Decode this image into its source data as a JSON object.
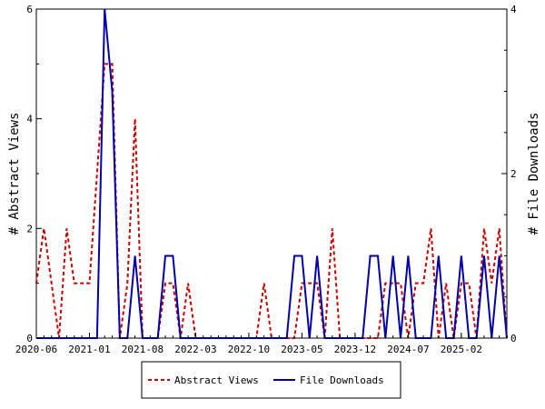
{
  "chart_data": {
    "type": "line",
    "xlabel": "",
    "ylabel": "# Abstract Views",
    "y2label": "# File Downloads",
    "x_tick_labels": [
      "2020-06",
      "2021-01",
      "2021-08",
      "2022-03",
      "2022-10",
      "2023-05",
      "2023-12",
      "2024-07",
      "2025-02"
    ],
    "ylim": [
      0,
      6
    ],
    "y_ticks": [
      "0",
      "2",
      "4",
      "6"
    ],
    "y2lim": [
      0,
      4
    ],
    "y2_ticks": [
      "0",
      "2",
      "4"
    ],
    "legend_position": "bottom-center",
    "grid": false,
    "colors": {
      "abstract_views": "#cc0000",
      "file_downloads": "#0000aa"
    },
    "series": [
      {
        "name": "Abstract Views",
        "axis": "left",
        "style": "dashed",
        "values": [
          1,
          2,
          1,
          0,
          2,
          1,
          1,
          1,
          3,
          5,
          5,
          0,
          1,
          4,
          0,
          0,
          0,
          1,
          1,
          0,
          1,
          0,
          0,
          0,
          0,
          0,
          0,
          0,
          0,
          0,
          1,
          0,
          0,
          0,
          0,
          1,
          1,
          1,
          0,
          2,
          0,
          0,
          0,
          0,
          0,
          0,
          1,
          1,
          1,
          0,
          1,
          1,
          2,
          0,
          1,
          0,
          1,
          1,
          0,
          2,
          1,
          2,
          0
        ]
      },
      {
        "name": "File Downloads",
        "axis": "right",
        "style": "solid",
        "values": [
          0,
          0,
          0,
          0,
          0,
          0,
          0,
          0,
          0,
          4,
          3,
          0,
          0,
          1,
          0,
          0,
          0,
          1,
          1,
          0,
          0,
          0,
          0,
          0,
          0,
          0,
          0,
          0,
          0,
          0,
          0,
          0,
          0,
          0,
          1,
          1,
          0,
          1,
          0,
          0,
          0,
          0,
          0,
          0,
          1,
          1,
          0,
          1,
          0,
          1,
          0,
          0,
          0,
          1,
          0,
          0,
          1,
          0,
          0,
          1,
          0,
          1,
          0
        ]
      }
    ]
  }
}
